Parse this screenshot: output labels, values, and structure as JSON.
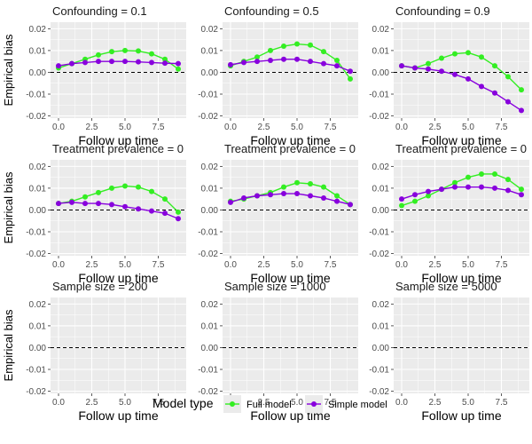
{
  "chart_data": {
    "type": "line",
    "layout": "3x3 facet grid",
    "xlabel": "Follow up time",
    "ylabel": "Empirical bias",
    "xlim": [
      -0.6,
      9.6
    ],
    "ylim": [
      -0.021,
      0.023
    ],
    "x_ticks": [
      0,
      2.5,
      5,
      7.5
    ],
    "x_tick_labels": [
      "0.0",
      "2.5",
      "5.0",
      "7.5"
    ],
    "y_ticks": [
      -0.02,
      -0.01,
      0,
      0.01,
      0.02
    ],
    "y_tick_labels": [
      "-0.02",
      "-0.01",
      "0.00",
      "0.01",
      "0.02"
    ],
    "reference_line": 0,
    "grid": true,
    "x": [
      0,
      1,
      2,
      3,
      4,
      5,
      6,
      7,
      8,
      9
    ],
    "legend": {
      "title": "Model type",
      "position": "bottom",
      "entries": [
        "Full model",
        "Simple model"
      ]
    },
    "colors": {
      "Full model": "#33ee22",
      "Simple model": "#8800dd",
      "panel_background": "#ebebeb",
      "grid": "#ffffff"
    },
    "panels": [
      {
        "title": "Confounding = 0.1",
        "series": [
          {
            "name": "Full model",
            "values": [
              0.002,
              0.004,
              0.006,
              0.008,
              0.0095,
              0.01,
              0.0098,
              0.0085,
              0.006,
              0.0015
            ]
          },
          {
            "name": "Simple model",
            "values": [
              0.003,
              0.004,
              0.0045,
              0.005,
              0.005,
              0.005,
              0.0048,
              0.0045,
              0.0042,
              0.004
            ]
          }
        ]
      },
      {
        "title": "Confounding = 0.5",
        "series": [
          {
            "name": "Full model",
            "values": [
              0.003,
              0.005,
              0.007,
              0.01,
              0.012,
              0.013,
              0.0125,
              0.0095,
              0.0055,
              -0.003
            ]
          },
          {
            "name": "Simple model",
            "values": [
              0.0035,
              0.0045,
              0.005,
              0.0055,
              0.006,
              0.006,
              0.005,
              0.004,
              0.003,
              0.0005
            ]
          }
        ]
      },
      {
        "title": "Confounding = 0.9",
        "series": [
          {
            "name": "Full model",
            "values": [
              0.003,
              0.002,
              0.004,
              0.0065,
              0.0085,
              0.009,
              0.007,
              0.003,
              -0.002,
              -0.008
            ]
          },
          {
            "name": "Simple model",
            "values": [
              0.003,
              0.002,
              0.0015,
              0.0005,
              -0.001,
              -0.003,
              -0.0065,
              -0.0095,
              -0.0135,
              -0.0175
            ]
          }
        ]
      },
      {
        "title": "Treatment prevalence = 0",
        "series": [
          {
            "name": "Full model",
            "values": [
              0.003,
              0.004,
              0.006,
              0.008,
              0.01,
              0.011,
              0.0105,
              0.0085,
              0.005,
              -0.001
            ]
          },
          {
            "name": "Simple model",
            "values": [
              0.003,
              0.0035,
              0.003,
              0.003,
              0.0025,
              0.0015,
              0.0005,
              -0.0005,
              -0.0015,
              -0.004
            ]
          }
        ]
      },
      {
        "title": "Treatment prevalence = 0",
        "series": [
          {
            "name": "Full model",
            "values": [
              0.004,
              0.005,
              0.0065,
              0.008,
              0.0105,
              0.0125,
              0.012,
              0.0105,
              0.0065,
              0.0025
            ]
          },
          {
            "name": "Simple model",
            "values": [
              0.0035,
              0.0055,
              0.0065,
              0.007,
              0.0075,
              0.0075,
              0.0065,
              0.0055,
              0.004,
              0.0025
            ]
          }
        ]
      },
      {
        "title": "Treatment prevalence = 0",
        "series": [
          {
            "name": "Full model",
            "values": [
              0.002,
              0.004,
              0.0065,
              0.0095,
              0.0125,
              0.015,
              0.0165,
              0.0165,
              0.014,
              0.0095
            ]
          },
          {
            "name": "Simple model",
            "values": [
              0.005,
              0.007,
              0.0085,
              0.0095,
              0.0105,
              0.0105,
              0.0105,
              0.01,
              0.009,
              0.007
            ]
          }
        ]
      },
      {
        "title": "Sample size = 200",
        "series": []
      },
      {
        "title": "Sample size = 1000",
        "series": []
      },
      {
        "title": "Sample size = 5000",
        "series": []
      }
    ]
  }
}
